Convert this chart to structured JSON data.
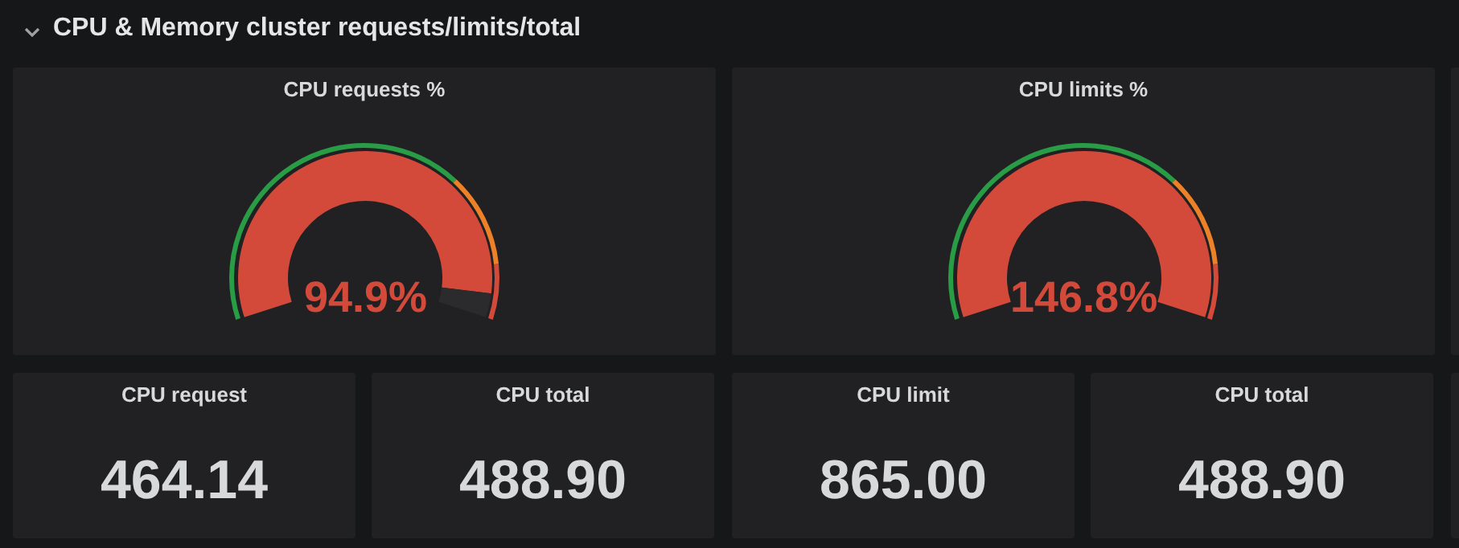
{
  "chart_data": [
    {
      "type": "other",
      "title": "CPU & Memory cluster requests/limits/total"
    },
    {
      "type": "donut",
      "title": "CPU requests %",
      "categories": [
        null,
        null
      ],
      "values": [
        94.9,
        5.1
      ],
      "colors": [
        "#d44a3a",
        "#2b2b2e"
      ],
      "annotations": [
        "94.9%"
      ]
    },
    {
      "type": "pie",
      "title": "CPU limits %",
      "categories": [
        null
      ],
      "values": [
        100
      ],
      "colors": [
        "#d44a3a"
      ],
      "annotations": [
        "146.8%"
      ]
    },
    {
      "type": "other",
      "title": "CPU request",
      "annotations": [
        "464.14"
      ]
    },
    {
      "type": "other",
      "title": "CPU total",
      "annotations": [
        "488.90"
      ]
    },
    {
      "type": "other",
      "title": "CPU limit",
      "annotations": [
        "865.00"
      ]
    },
    {
      "type": "other",
      "title": "CPU total",
      "annotations": [
        "488.90"
      ]
    }
  ]
}
